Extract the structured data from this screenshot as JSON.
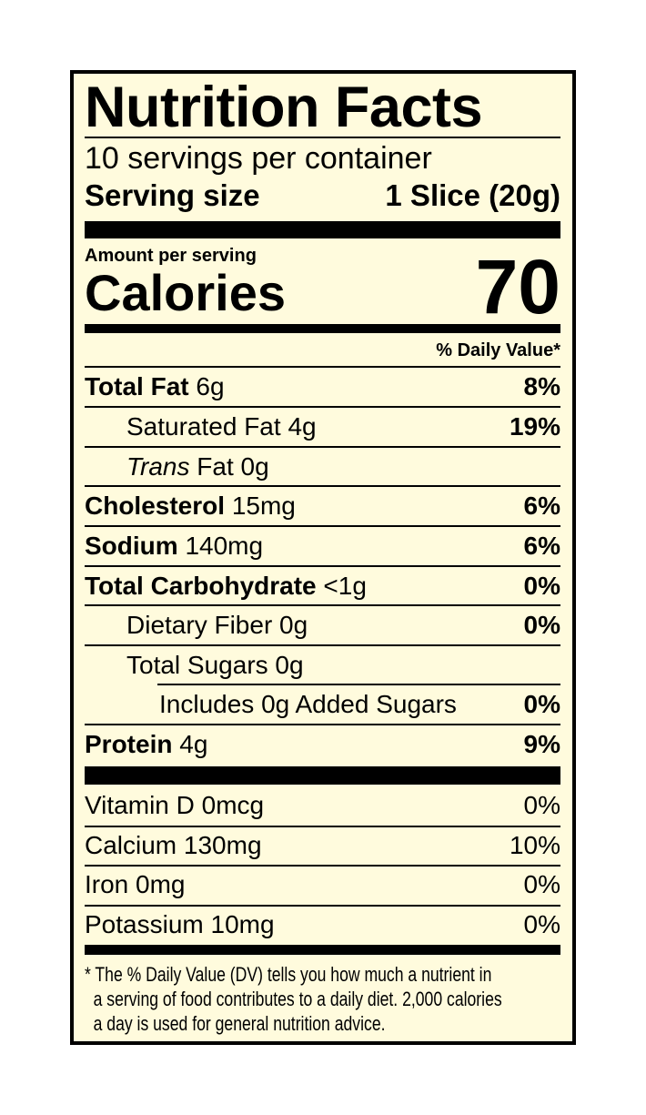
{
  "title": "Nutrition Facts",
  "servings_per_container": "10 servings per container",
  "serving_size_label": "Serving size",
  "serving_size_value": "1 Slice (20g)",
  "amount_per_serving": "Amount per serving",
  "calories_label": "Calories",
  "calories_value": "70",
  "daily_value_header": "% Daily Value*",
  "nutrients": [
    {
      "name": "Total Fat",
      "amount": "6g",
      "dv": "8%"
    },
    {
      "name": "Saturated Fat",
      "amount": "4g",
      "dv": "19%"
    },
    {
      "name": "Trans",
      "suffix": "Fat",
      "amount": "0g",
      "dv": ""
    },
    {
      "name": "Cholesterol",
      "amount": "15mg",
      "dv": "6%"
    },
    {
      "name": "Sodium",
      "amount": "140mg",
      "dv": "6%"
    },
    {
      "name": "Total Carbohydrate",
      "amount": "<1g",
      "dv": "0%"
    },
    {
      "name": "Dietary Fiber",
      "amount": "0g",
      "dv": "0%"
    },
    {
      "name": "Total Sugars",
      "amount": "0g",
      "dv": ""
    },
    {
      "name": "Includes 0g Added Sugars",
      "amount": "",
      "dv": "0%"
    },
    {
      "name": "Protein",
      "amount": "4g",
      "dv": "9%"
    }
  ],
  "vitamins": [
    {
      "name": "Vitamin D 0mcg",
      "dv": "0%"
    },
    {
      "name": "Calcium 130mg",
      "dv": "10%"
    },
    {
      "name": "Iron 0mg",
      "dv": "0%"
    },
    {
      "name": "Potassium 10mg",
      "dv": "0%"
    }
  ],
  "footnote": [
    "* The % Daily Value (DV) tells you how much a nutrient in",
    "  a serving of food contributes to a daily diet. 2,000 calories",
    "  a day is used for general nutrition advice."
  ],
  "colors": {
    "background": "#FFFBDD",
    "ink": "#000000"
  }
}
